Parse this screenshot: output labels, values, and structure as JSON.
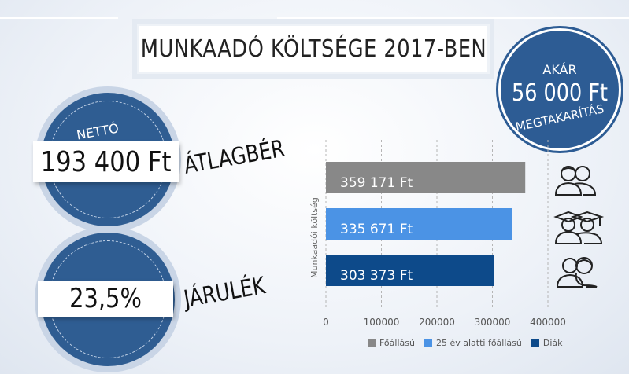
{
  "title": "MUNKAADÓ KÖLTSÉGE 2017-BEN",
  "badge": {
    "line1": "AKÁR",
    "line2": "56 000 Ft",
    "line3": "MEGTAKARÍTÁS"
  },
  "salary": {
    "label_top": "NETTÓ",
    "value": "193 400 Ft",
    "caption": "ÁTLAGBÉR"
  },
  "contribution": {
    "value": "23,5%",
    "caption": "JÁRULÉK"
  },
  "colors": {
    "foallasu": "#888888",
    "under25": "#4b93e5",
    "diak": "#0d4a8a",
    "circle": "#2f5d92"
  },
  "chart_data": {
    "type": "bar",
    "orientation": "horizontal",
    "ylabel": "Munkaadói költség",
    "xlim": [
      0,
      400000
    ],
    "xticks": [
      "0",
      "100000",
      "200000",
      "300000",
      "400000"
    ],
    "series": [
      {
        "name": "Főállású",
        "value": 359171,
        "label": "359 171 Ft",
        "color": "#888888",
        "icon": "two-people-icon"
      },
      {
        "name": "25 év alatti főállású",
        "value": 335671,
        "label": "335 671 Ft",
        "color": "#4b93e5",
        "icon": "graduates-icon"
      },
      {
        "name": "Diák",
        "value": 303373,
        "label": "303 373 Ft",
        "color": "#0d4a8a",
        "icon": "students-icon"
      }
    ],
    "grid": "vertical-dashed",
    "legend": "bottom"
  }
}
